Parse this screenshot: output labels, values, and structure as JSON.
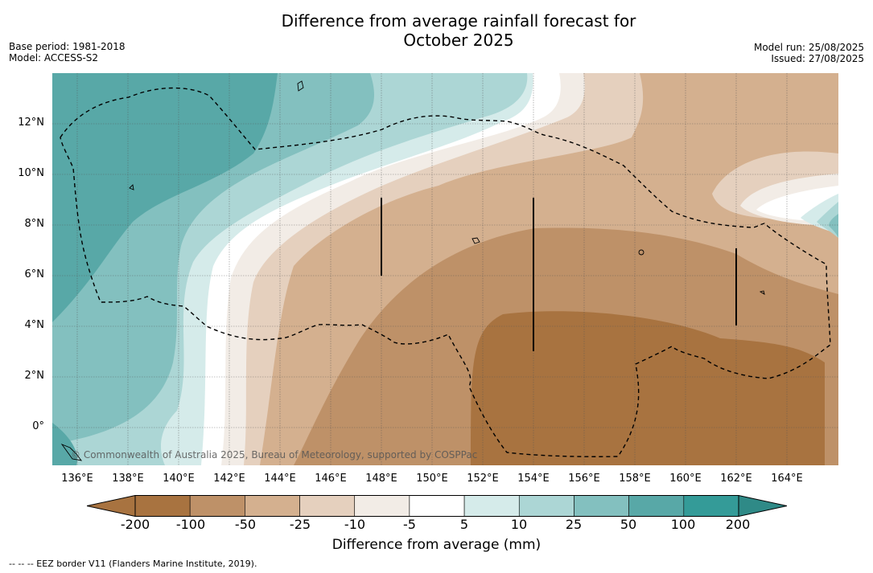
{
  "title_line1": "Difference from average rainfall forecast for",
  "title_line2": "October 2025",
  "base_period": "Base period: 1981-2018",
  "model": "Model: ACCESS-S2",
  "model_run": "Model run: 25/08/2025",
  "issued": "Issued: 27/08/2025",
  "copyright": "© Commonwealth of Australia 2025, Bureau of Meteorology, supported by COSPPac",
  "lat_labels": [
    "12°N",
    "10°N",
    "8°N",
    "6°N",
    "4°N",
    "2°N",
    "0°"
  ],
  "lon_labels": [
    "136°E",
    "138°E",
    "140°E",
    "142°E",
    "144°E",
    "146°E",
    "148°E",
    "150°E",
    "152°E",
    "154°E",
    "156°E",
    "158°E",
    "160°E",
    "162°E",
    "164°E"
  ],
  "colorbar": {
    "label": "Difference from average (mm)",
    "ticks": [
      "-200",
      "-100",
      "-50",
      "-25",
      "-10",
      "-5",
      "5",
      "10",
      "25",
      "50",
      "100",
      "200"
    ],
    "colors": [
      "#a87340",
      "#a87340",
      "#be9168",
      "#d4b08f",
      "#e5d0be",
      "#f2ece6",
      "#ffffff",
      "#d5ebea",
      "#acd6d5",
      "#83c0bf",
      "#58a8a7",
      "#349b98",
      "#2f8a87"
    ]
  },
  "footnote": "--  --  -- EEZ border V11 (Flanders Marine Institute, 2019)."
}
